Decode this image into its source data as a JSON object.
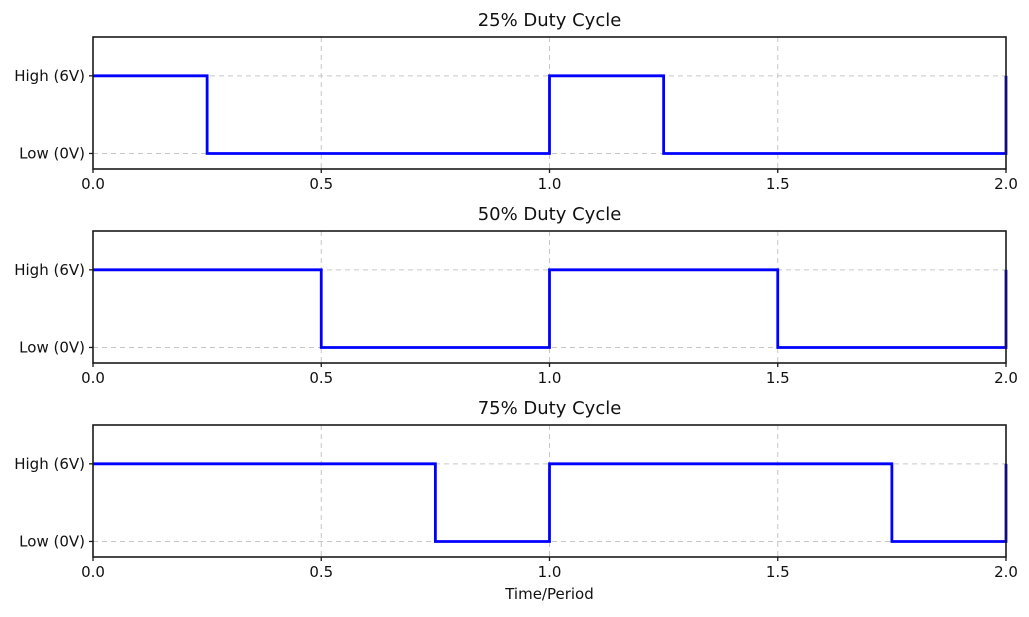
{
  "figure": {
    "background_color": "#ffffff",
    "text_color": "#111111",
    "grid_color": "#c6c6c6",
    "spine_color": "#1a1a1a"
  },
  "chart_data": [
    {
      "type": "line",
      "line_style": "step",
      "title": "25% Duty Cycle",
      "duty_cycle_percent": 25,
      "x": [
        0,
        0.25,
        0.25,
        1.0,
        1.0,
        1.25,
        1.25,
        2.0,
        2.0
      ],
      "y": [
        1,
        1,
        0,
        0,
        1,
        1,
        0,
        0,
        1
      ],
      "xlim": [
        0.0,
        2.0
      ],
      "ylim": [
        -0.2,
        1.5
      ],
      "xticks": [
        0.0,
        0.5,
        1.0,
        1.5,
        2.0
      ],
      "xtick_labels": [
        "0.0",
        "0.5",
        "1.0",
        "1.5",
        "2.0"
      ],
      "yticks": [
        1,
        0
      ],
      "ytick_labels": [
        "High (6V)",
        "Low (0V)"
      ],
      "line_color": "#0000ff",
      "grid": true,
      "grid_linestyle": "dashed",
      "legend": "none",
      "xlabel": ""
    },
    {
      "type": "line",
      "line_style": "step",
      "title": "50% Duty Cycle",
      "duty_cycle_percent": 50,
      "x": [
        0,
        0.5,
        0.5,
        1.0,
        1.0,
        1.5,
        1.5,
        2.0,
        2.0
      ],
      "y": [
        1,
        1,
        0,
        0,
        1,
        1,
        0,
        0,
        1
      ],
      "xlim": [
        0.0,
        2.0
      ],
      "ylim": [
        -0.2,
        1.5
      ],
      "xticks": [
        0.0,
        0.5,
        1.0,
        1.5,
        2.0
      ],
      "xtick_labels": [
        "0.0",
        "0.5",
        "1.0",
        "1.5",
        "2.0"
      ],
      "yticks": [
        1,
        0
      ],
      "ytick_labels": [
        "High (6V)",
        "Low (0V)"
      ],
      "line_color": "#0000ff",
      "grid": true,
      "grid_linestyle": "dashed",
      "legend": "none",
      "xlabel": ""
    },
    {
      "type": "line",
      "line_style": "step",
      "title": "75% Duty Cycle",
      "duty_cycle_percent": 75,
      "x": [
        0,
        0.75,
        0.75,
        1.0,
        1.0,
        1.75,
        1.75,
        2.0,
        2.0
      ],
      "y": [
        1,
        1,
        0,
        0,
        1,
        1,
        0,
        0,
        1
      ],
      "xlim": [
        0.0,
        2.0
      ],
      "ylim": [
        -0.2,
        1.5
      ],
      "xticks": [
        0.0,
        0.5,
        1.0,
        1.5,
        2.0
      ],
      "xtick_labels": [
        "0.0",
        "0.5",
        "1.0",
        "1.5",
        "2.0"
      ],
      "yticks": [
        1,
        0
      ],
      "ytick_labels": [
        "High (6V)",
        "Low (0V)"
      ],
      "line_color": "#0000ff",
      "grid": true,
      "grid_linestyle": "dashed",
      "legend": "none",
      "xlabel": "Time/Period"
    }
  ]
}
